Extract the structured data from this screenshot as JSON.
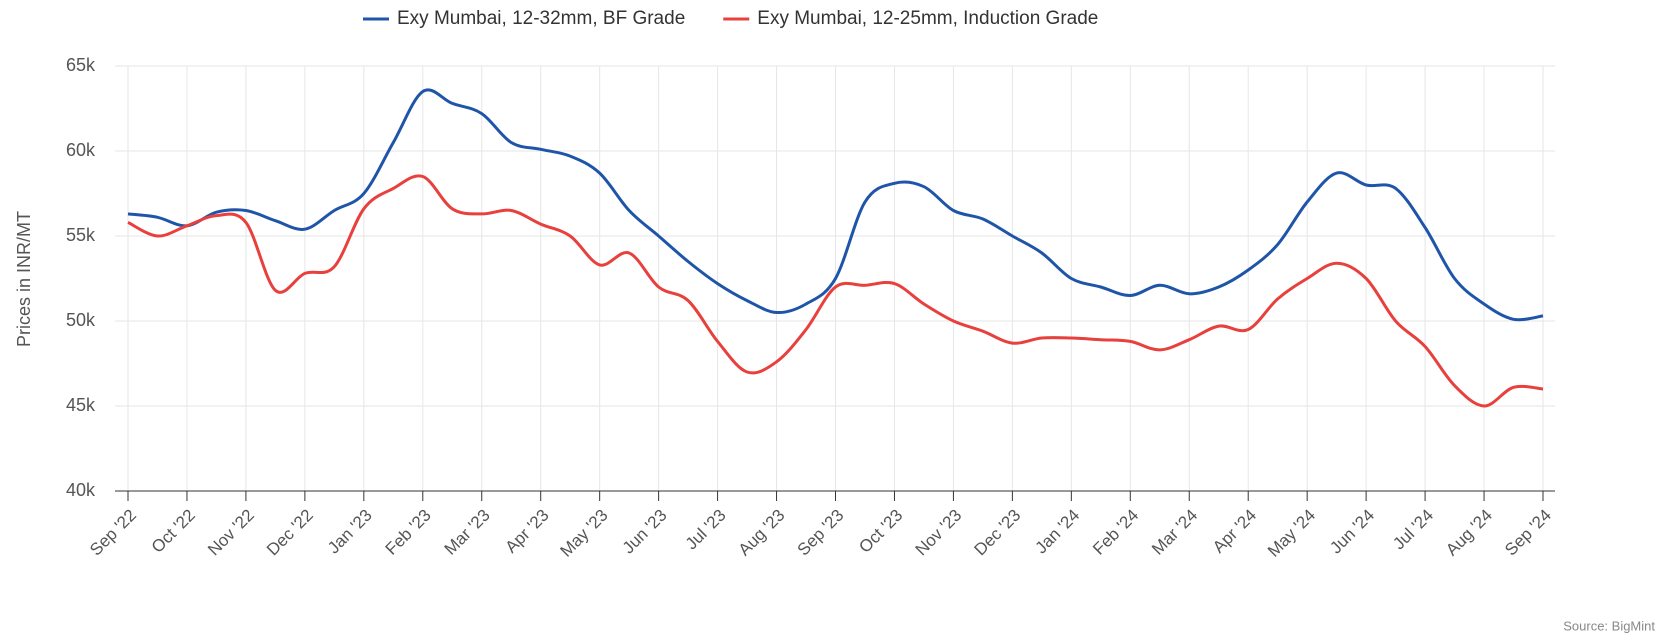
{
  "chart_data": {
    "type": "line",
    "y_label": "Prices in INR/MT",
    "source": "Source: BigMint",
    "categories": [
      "Sep '22",
      null,
      "Oct '22",
      null,
      "Nov '22",
      null,
      "Dec '22",
      null,
      "Jan '23",
      null,
      "Feb '23",
      null,
      "Mar '23",
      null,
      "Apr '23",
      null,
      "May '23",
      null,
      "Jun '23",
      null,
      "Jul '23",
      null,
      "Aug '23",
      null,
      "Sep '23",
      null,
      "Oct '23",
      null,
      "Nov '23",
      null,
      "Dec '23",
      null,
      "Jan '24",
      null,
      "Feb '24",
      null,
      "Mar '24",
      null,
      "Apr '24",
      null,
      "May '24",
      null,
      "Jun '24",
      null,
      "Jul '24",
      null,
      "Aug '24",
      null,
      "Sep '24"
    ],
    "series": [
      {
        "name": "Exy Mumbai, 12-32mm, BF Grade",
        "color": "#1f55a8",
        "values": [
          56300,
          56100,
          55600,
          56400,
          56500,
          55900,
          55400,
          56500,
          57500,
          60500,
          63500,
          62800,
          62200,
          60500,
          60100,
          59700,
          58700,
          56500,
          55000,
          53500,
          52200,
          51200,
          50500,
          51000,
          52500,
          57000,
          58100,
          57900,
          56500,
          56000,
          55000,
          54000,
          52500,
          52000,
          51500,
          52100,
          51600,
          52000,
          53000,
          54500,
          57000,
          58700,
          58000,
          57800,
          55500,
          52500,
          51000,
          50100,
          50300
        ]
      },
      {
        "name": "Exy Mumbai, 12-25mm, Induction Grade",
        "color": "#e8403d",
        "values": [
          55800,
          55000,
          55600,
          56200,
          55800,
          51800,
          52800,
          53200,
          56600,
          57800,
          58500,
          56600,
          56300,
          56500,
          55700,
          55000,
          53300,
          54000,
          52000,
          51200,
          48800,
          47000,
          47600,
          49500,
          52000,
          52100,
          52200,
          51000,
          50000,
          49400,
          48700,
          49000,
          49000,
          48900,
          48800,
          48300,
          48900,
          49700,
          49500,
          51300,
          52500,
          53400,
          52500,
          50000,
          48500,
          46200,
          45000,
          46100,
          46000
        ]
      }
    ],
    "ylim": [
      40000,
      65000
    ],
    "yticks": [
      {
        "value": 40000,
        "label": "40k"
      },
      {
        "value": 45000,
        "label": "45k"
      },
      {
        "value": 50000,
        "label": "50k"
      },
      {
        "value": 55000,
        "label": "55k"
      },
      {
        "value": 60000,
        "label": "60k"
      },
      {
        "value": 65000,
        "label": "65k"
      }
    ],
    "grid": true,
    "legend": "top"
  }
}
